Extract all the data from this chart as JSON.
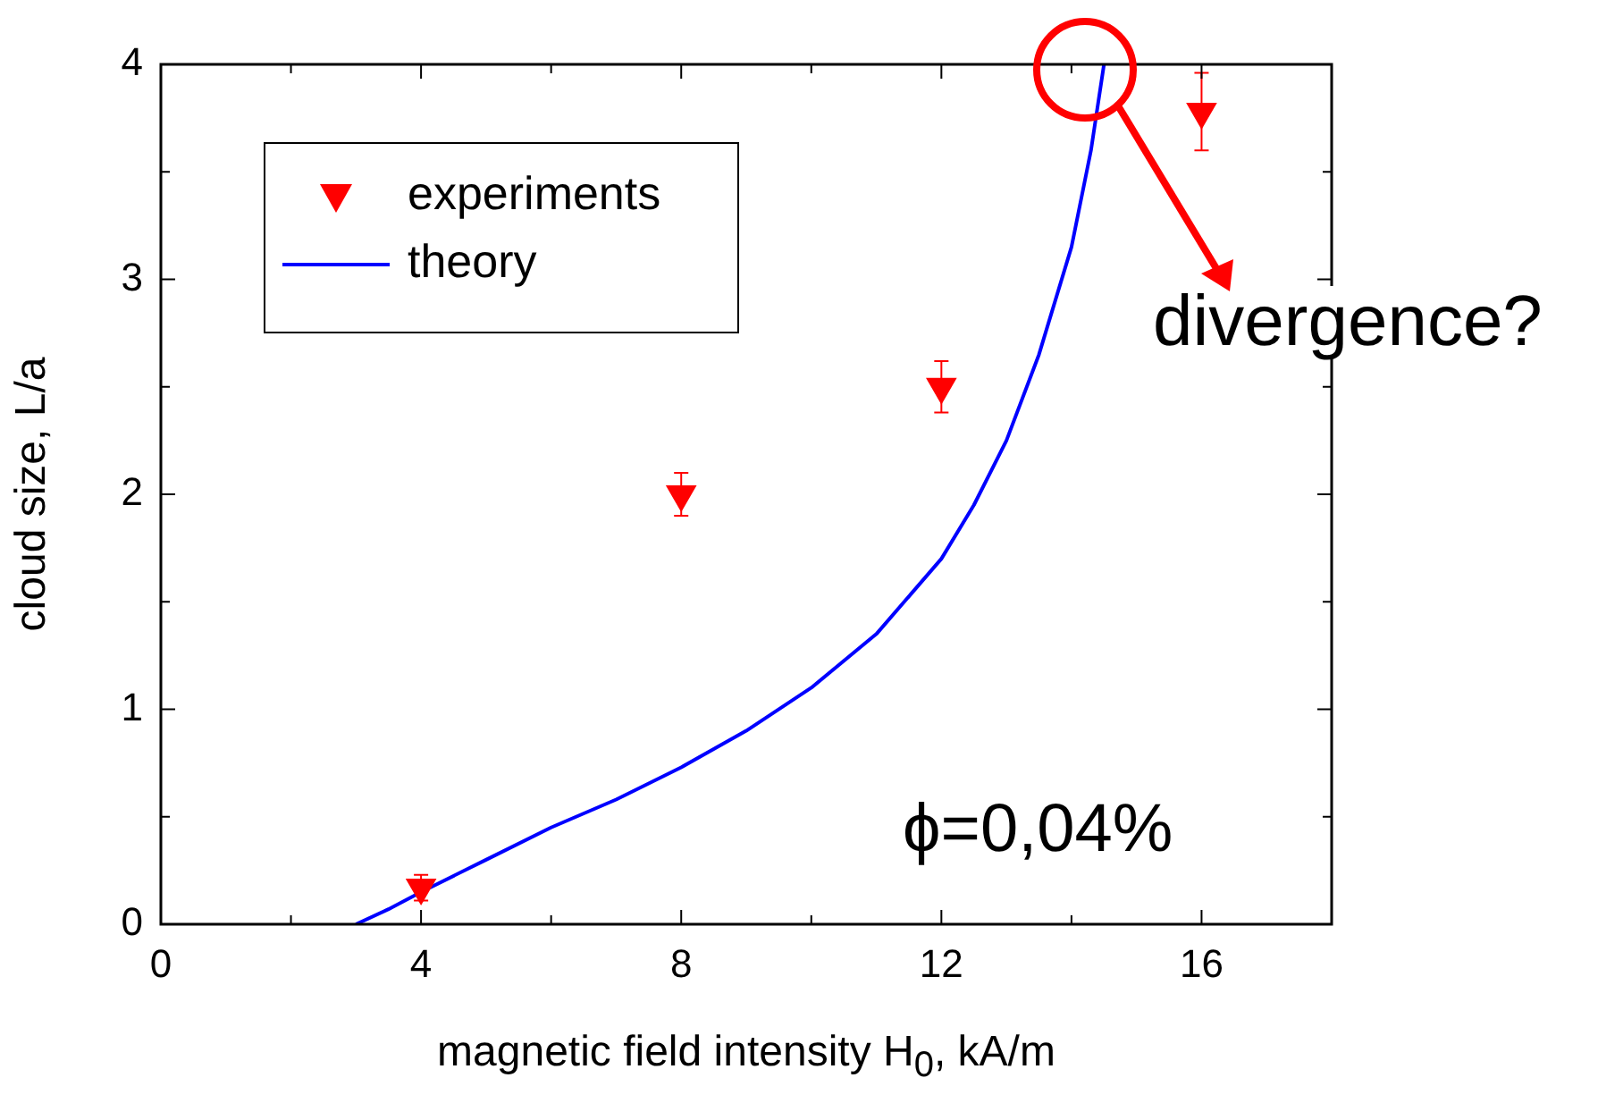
{
  "chart_data": {
    "type": "scatter",
    "xlabel": "magnetic field intensity H$_{0}$, kA/m",
    "ylabel": "cloud size, L/a",
    "xlim": [
      0,
      18
    ],
    "xticks": [
      0,
      {
        "value": 2,
        "label": null
      },
      4,
      {
        "value": 6,
        "label": null
      },
      8,
      {
        "value": 10,
        "label": null
      },
      12,
      {
        "value": 14,
        "label": null
      },
      16
    ],
    "ylim": [
      0,
      4
    ],
    "yticks": [
      0,
      {
        "value": 0.5,
        "label": null
      },
      1,
      {
        "value": 1.5,
        "label": null
      },
      2,
      {
        "value": 2.5,
        "label": null
      },
      3,
      {
        "value": 3.5,
        "label": null
      },
      4
    ],
    "series": [
      {
        "name": "experiments",
        "color": "#ff0000",
        "marker": "triangle",
        "x": [
          4,
          8,
          12,
          16
        ],
        "values": [
          0.17,
          2.0,
          2.5,
          3.78
        ],
        "errors": [
          0.06,
          0.1,
          0.12,
          0.18
        ]
      },
      {
        "name": "theory",
        "type": "line",
        "color": "#0000ff",
        "marker": "none",
        "line_style": "solid",
        "x": [
          3,
          3.5,
          4,
          5,
          6,
          7,
          8,
          9,
          10,
          11,
          12,
          12.5,
          13,
          13.5,
          14,
          14.3,
          14.5
        ],
        "values": [
          0,
          0.07,
          0.15,
          0.3,
          0.45,
          0.58,
          0.73,
          0.9,
          1.1,
          1.35,
          1.7,
          1.95,
          2.25,
          2.65,
          3.15,
          3.6,
          4
        ]
      }
    ],
    "legend": "top left",
    "grid": false,
    "annotations": [
      "divergence?",
      "ϕ=0,04%"
    ]
  }
}
